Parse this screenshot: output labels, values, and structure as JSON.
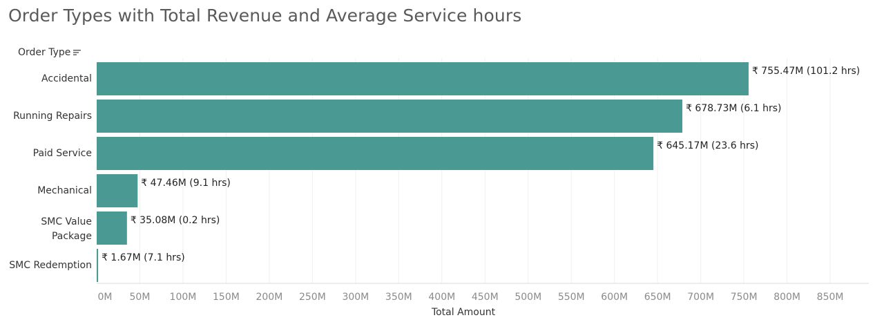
{
  "colors": {
    "bar": "#4a9992",
    "grid": "#f0f0f0",
    "axis": "#d9d9d9"
  },
  "header": {
    "title": "Order Types with Total Revenue and Average Service hours",
    "field_label": "Order Type",
    "sort_icon": "sort-descending-icon"
  },
  "chart_data": {
    "type": "bar",
    "orientation": "horizontal",
    "title": "Order Types with Total Revenue and Average Service hours",
    "ylabel": "Order Type",
    "xlabel": "Total Amount",
    "xlim": [
      0,
      900
    ],
    "x_unit": "M",
    "grid": true,
    "categories": [
      "Accidental",
      "Running Repairs",
      "Paid Service",
      "Mechanical",
      "SMC Value\nPackage",
      "SMC Redemption"
    ],
    "values": [
      755.47,
      678.73,
      645.17,
      47.46,
      35.08,
      1.67
    ],
    "data_labels": [
      "₹ 755.47M (101.2 hrs)",
      "₹ 678.73M (6.1 hrs)",
      "₹ 645.17M (23.6 hrs)",
      "₹ 47.46M (9.1 hrs)",
      "₹ 35.08M (0.2 hrs)",
      "₹ 1.67M (7.1 hrs)"
    ],
    "x_ticks": [
      "0M",
      "50M",
      "100M",
      "150M",
      "200M",
      "250M",
      "300M",
      "350M",
      "400M",
      "450M",
      "500M",
      "550M",
      "600M",
      "650M",
      "700M",
      "750M",
      "800M",
      "850M"
    ]
  }
}
